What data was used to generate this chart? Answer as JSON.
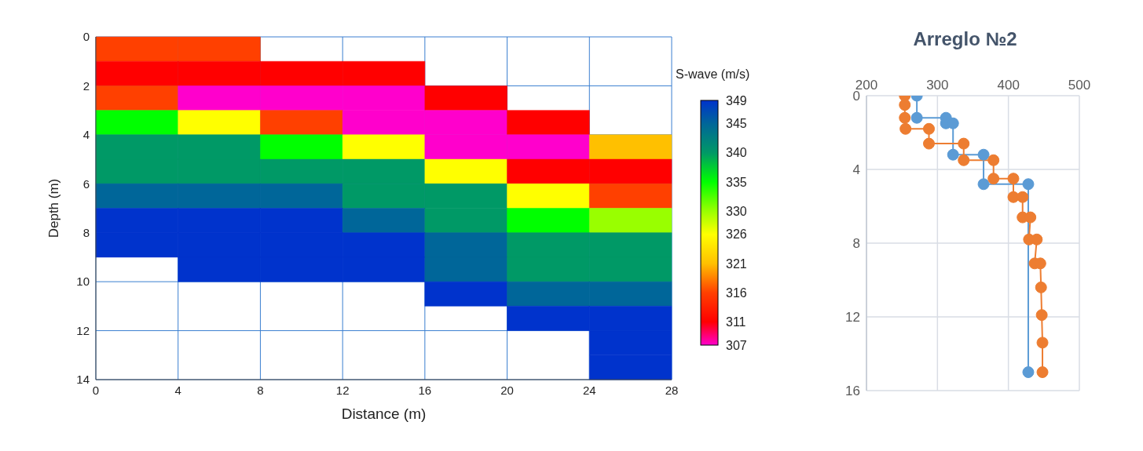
{
  "chart_data": [
    {
      "type": "heatmap",
      "xlabel": "Distance (m)",
      "ylabel": "Depth (m)",
      "clabel": "S-wave (m/s)",
      "xlim": [
        0,
        28
      ],
      "xticks": [
        0,
        4,
        8,
        12,
        16,
        20,
        24,
        28
      ],
      "ylim": [
        14,
        0
      ],
      "yticks": [
        0,
        2,
        4,
        6,
        8,
        10,
        12,
        14
      ],
      "grid": true,
      "clim": [
        307,
        349
      ],
      "cticks": [
        307,
        311,
        316,
        321,
        326,
        330,
        335,
        340,
        345,
        349
      ],
      "colors": [
        "#ff00cc",
        "#ff0000",
        "#ff4000",
        "#ffc000",
        "#ffff00",
        "#99ff00",
        "#00ff00",
        "#009966",
        "#006699",
        "#0033cc"
      ],
      "cells": [
        [
          316,
          316,
          null,
          null,
          null,
          null,
          null
        ],
        [
          311,
          311,
          311,
          311,
          null,
          null,
          null
        ],
        [
          316,
          307,
          307,
          307,
          311,
          null,
          null
        ],
        [
          335,
          326,
          316,
          307,
          307,
          311,
          null
        ],
        [
          340,
          340,
          335,
          326,
          307,
          307,
          321
        ],
        [
          340,
          340,
          340,
          340,
          326,
          311,
          311
        ],
        [
          345,
          345,
          345,
          340,
          340,
          326,
          316
        ],
        [
          349,
          349,
          349,
          345,
          340,
          335,
          330
        ],
        [
          349,
          349,
          349,
          349,
          345,
          340,
          340
        ],
        [
          null,
          349,
          349,
          349,
          345,
          340,
          340
        ],
        [
          null,
          null,
          null,
          null,
          349,
          345,
          345
        ],
        [
          null,
          null,
          null,
          null,
          null,
          349,
          349
        ],
        [
          null,
          null,
          null,
          null,
          null,
          null,
          349
        ],
        [
          null,
          null,
          null,
          null,
          null,
          null,
          349
        ]
      ]
    },
    {
      "type": "line",
      "title": "Arreglo №2",
      "xlim": [
        200,
        500
      ],
      "xticks": [
        200,
        300,
        400,
        500
      ],
      "ylim": [
        16,
        0
      ],
      "yticks": [
        0,
        4,
        8,
        12,
        16
      ],
      "grid": true,
      "marker": "circle",
      "line_style": "solid",
      "series": [
        {
          "color": "#5b9bd5",
          "x": [
            271,
            271,
            312,
            312,
            322,
            322,
            365,
            365,
            428,
            428
          ],
          "values": [
            0,
            1.2,
            1.2,
            1.5,
            1.5,
            3.2,
            3.2,
            4.8,
            4.8,
            15
          ]
        },
        {
          "color": "#ed7d31",
          "x": [
            254,
            254,
            254,
            255,
            288,
            288,
            337,
            337,
            379,
            379,
            407,
            407,
            420,
            420,
            431,
            429,
            440,
            437,
            445,
            446,
            447,
            448,
            448
          ],
          "values": [
            0,
            0.5,
            1.2,
            1.8,
            1.8,
            2.6,
            2.6,
            3.5,
            3.5,
            4.5,
            4.5,
            5.5,
            5.5,
            6.6,
            6.6,
            7.8,
            7.8,
            9.1,
            9.1,
            10.4,
            11.9,
            13.4,
            15
          ]
        }
      ]
    }
  ]
}
